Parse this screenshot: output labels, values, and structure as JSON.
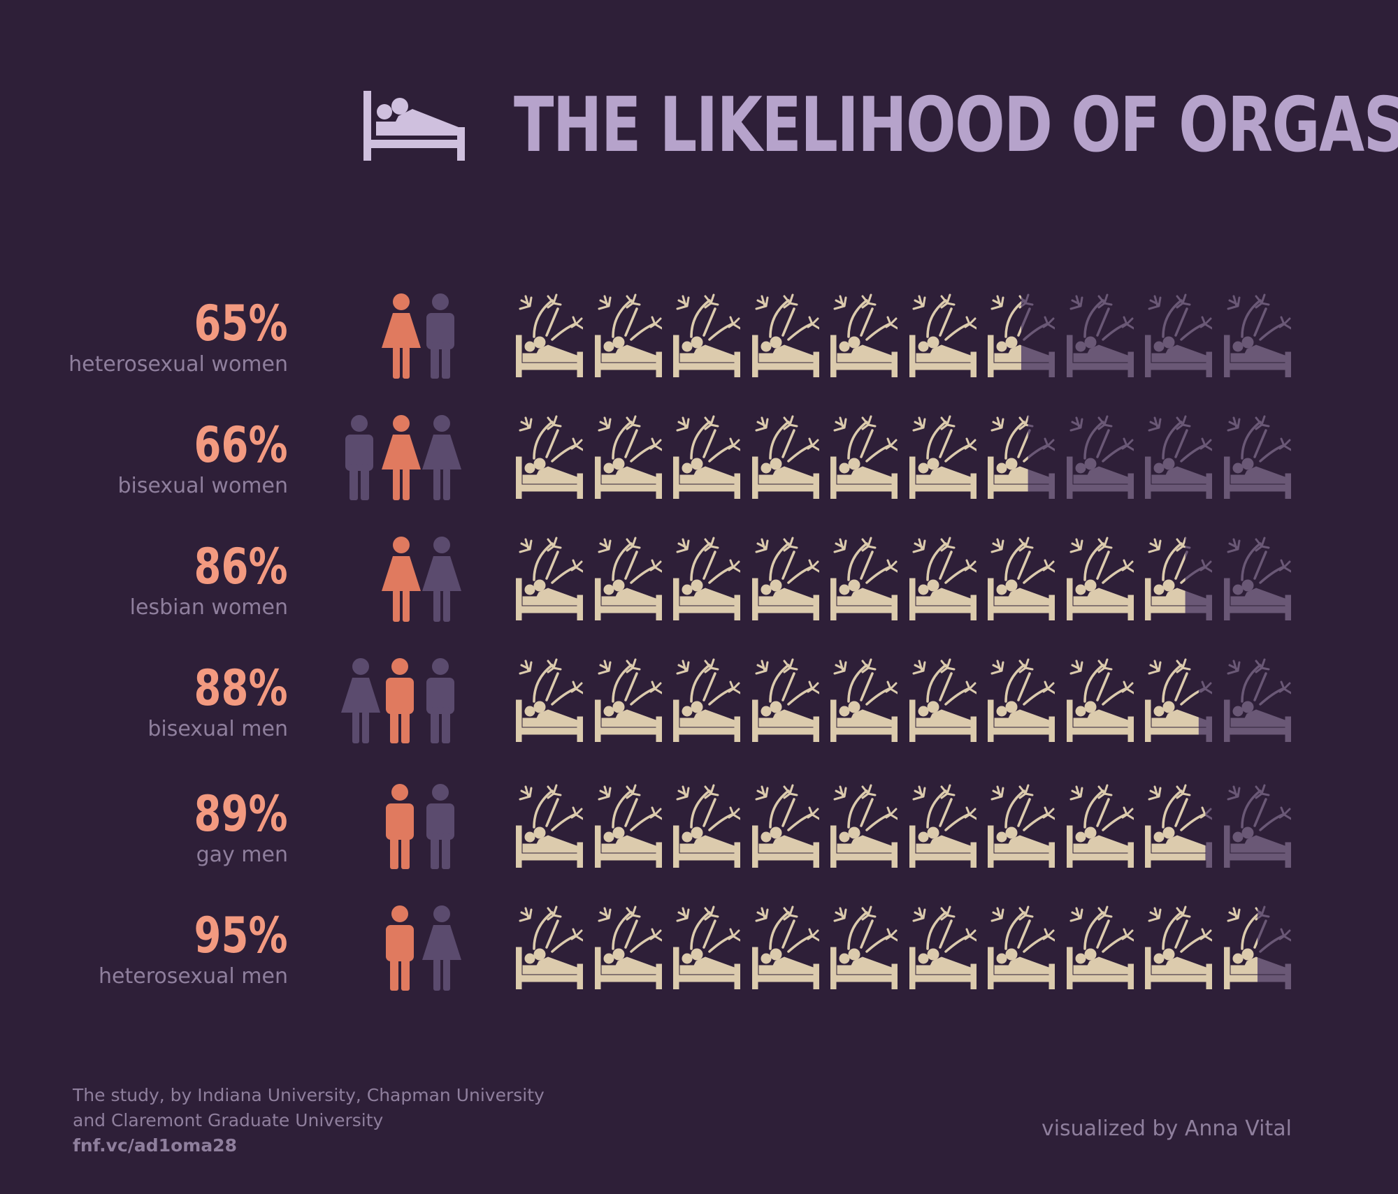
{
  "title": "THE LIKELIHOOD OF ORGASM",
  "colors": {
    "background": "#2e1f38",
    "bed_filled": "#dccbad",
    "bed_empty": "#6a5876",
    "highlight_figure": "#e07a5f",
    "other_figure": "#5b4b6e",
    "percent_text": "#f39a80",
    "title": "#b6a3cb",
    "muted_text": "#8f7f9d"
  },
  "icons_per_row": 10,
  "chart_data": {
    "type": "bar",
    "categories": [
      "heterosexual women",
      "bisexual women",
      "lesbian women",
      "bisexual men",
      "gay men",
      "heterosexual men"
    ],
    "values": [
      65,
      66,
      86,
      88,
      89,
      95
    ],
    "value_labels": [
      "65%",
      "66%",
      "86%",
      "88%",
      "89%",
      "95%"
    ],
    "unit": "%",
    "ylim": [
      0,
      100
    ],
    "title": "THE LIKELIHOOD OF ORGASM"
  },
  "rows": [
    {
      "pct": "65%",
      "group": "heterosexual women",
      "value": 65,
      "figures": [
        {
          "type": "woman",
          "highlight": true
        },
        {
          "type": "man",
          "highlight": false
        }
      ]
    },
    {
      "pct": "66%",
      "group": "bisexual women",
      "value": 66,
      "figures": [
        {
          "type": "man",
          "highlight": false
        },
        {
          "type": "woman",
          "highlight": true
        },
        {
          "type": "woman",
          "highlight": false
        }
      ]
    },
    {
      "pct": "86%",
      "group": "lesbian women",
      "value": 86,
      "figures": [
        {
          "type": "woman",
          "highlight": true
        },
        {
          "type": "woman",
          "highlight": false
        }
      ]
    },
    {
      "pct": "88%",
      "group": "bisexual men",
      "value": 88,
      "figures": [
        {
          "type": "woman",
          "highlight": false
        },
        {
          "type": "man",
          "highlight": true
        },
        {
          "type": "man",
          "highlight": false
        }
      ]
    },
    {
      "pct": "89%",
      "group": "gay men",
      "value": 89,
      "figures": [
        {
          "type": "man",
          "highlight": true
        },
        {
          "type": "man",
          "highlight": false
        }
      ]
    },
    {
      "pct": "95%",
      "group": "heterosexual men",
      "value": 95,
      "figures": [
        {
          "type": "man",
          "highlight": true
        },
        {
          "type": "woman",
          "highlight": false
        }
      ]
    }
  ],
  "footer": {
    "source_line1": "The study, by Indiana University, Chapman University",
    "source_line2": "and Claremont Graduate University",
    "link": "fnf.vc/ad1oma28",
    "credit": "visualized by Anna Vital"
  }
}
